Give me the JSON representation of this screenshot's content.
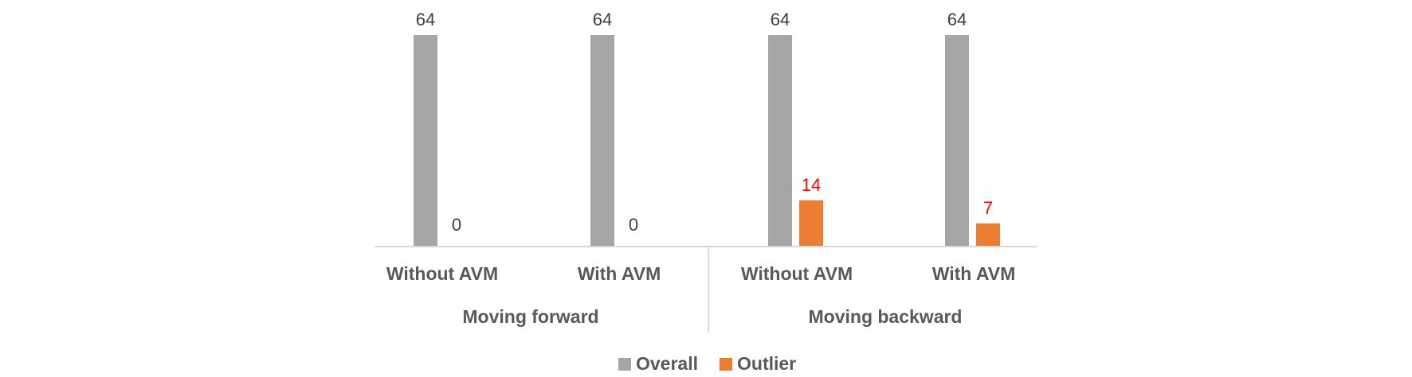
{
  "chart_data": {
    "type": "bar",
    "groups": [
      {
        "label": "Moving forward",
        "categories": [
          "Without AVM",
          "With AVM"
        ]
      },
      {
        "label": "Moving backward",
        "categories": [
          "Without AVM",
          "With AVM"
        ]
      }
    ],
    "categories": [
      "Without AVM",
      "With AVM",
      "Without AVM",
      "With AVM"
    ],
    "series": [
      {
        "name": "Overall",
        "color": "#a5a5a5",
        "label_color": "#404040",
        "values": [
          64,
          64,
          64,
          64
        ]
      },
      {
        "name": "Outlier",
        "color": "#ed7d31",
        "label_color": "#404040",
        "values": [
          0,
          0,
          14,
          7
        ]
      }
    ],
    "highlight_label_color": "#ff0000",
    "ylim": [
      0,
      64
    ],
    "grid": false,
    "legend": "bottom"
  }
}
